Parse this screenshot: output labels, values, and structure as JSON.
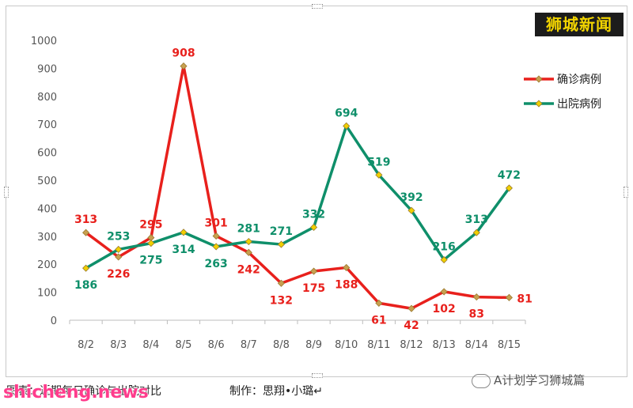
{
  "brand": "狮城新闻",
  "caption_left": "图表：近期每日确诊与出院对比",
  "caption_right": "制作：思翔•小璐↵",
  "wechat_label": "A计划学习狮城篇",
  "site_watermark": "shicheng.news",
  "colors": {
    "confirmed": "#e8201c",
    "discharged": "#0f8f6a",
    "marker": "#c8a050",
    "axis_text": "#555555",
    "grid": "#e6e6e6"
  },
  "chart_data": {
    "type": "line",
    "categories": [
      "8/2",
      "8/3",
      "8/4",
      "8/5",
      "8/6",
      "8/7",
      "8/8",
      "8/9",
      "8/10",
      "8/11",
      "8/12",
      "8/13",
      "8/14",
      "8/15"
    ],
    "series": [
      {
        "name": "确诊病例",
        "values": [
          313,
          226,
          295,
          908,
          301,
          242,
          132,
          175,
          188,
          61,
          42,
          102,
          83,
          81
        ]
      },
      {
        "name": "出院病例",
        "values": [
          186,
          253,
          275,
          314,
          263,
          281,
          271,
          332,
          694,
          519,
          392,
          216,
          313,
          472
        ]
      }
    ],
    "ylim": [
      0,
      1000
    ],
    "yticks": [
      0,
      100,
      200,
      300,
      400,
      500,
      600,
      700,
      800,
      900,
      1000
    ],
    "legend": "top-right",
    "grid": false
  }
}
